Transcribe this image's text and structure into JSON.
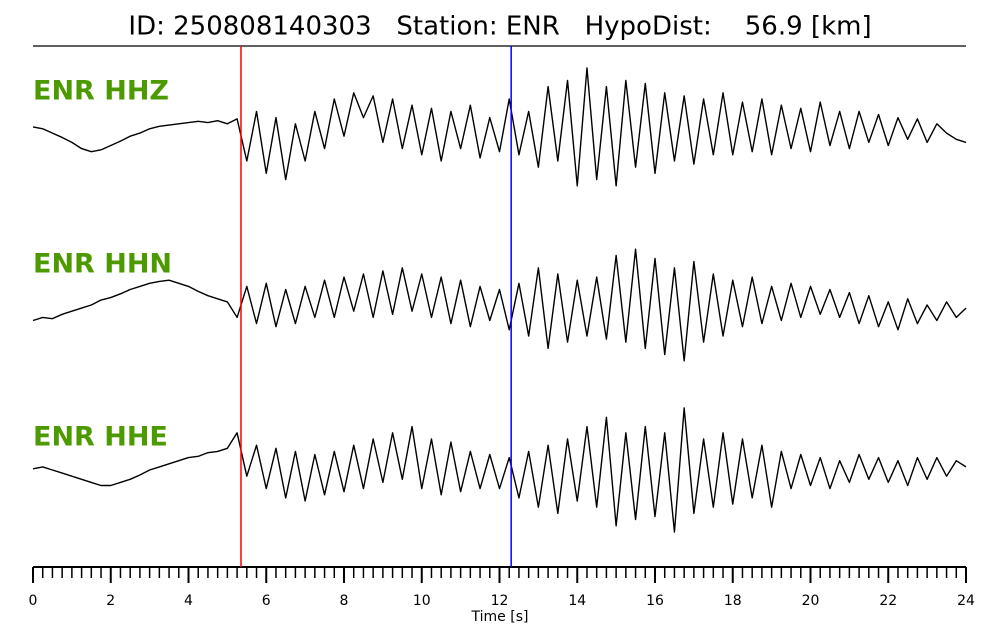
{
  "chart_data": {
    "type": "line",
    "title": "ID: 250808140303   Station: ENR   HypoDist:    56.9 [km]",
    "xlabel": "Time [s]",
    "xlim": [
      0,
      24
    ],
    "xticks": [
      0,
      2,
      4,
      6,
      8,
      10,
      12,
      14,
      16,
      18,
      20,
      22,
      24
    ],
    "xminorticks": [
      0,
      0.25,
      0.5,
      0.75,
      1,
      1.25,
      1.5,
      1.75,
      2,
      2.25,
      2.5,
      2.75,
      3,
      3.25,
      3.5,
      3.75,
      4,
      4.25,
      4.5,
      4.75,
      5,
      5.25,
      5.5,
      5.75,
      6,
      6.25,
      6.5,
      6.75,
      7,
      7.25,
      7.5,
      7.75,
      8,
      8.25,
      8.5,
      8.75,
      9,
      9.25,
      9.5,
      9.75,
      10,
      10.25,
      10.5,
      10.75,
      11,
      11.25,
      11.5,
      11.75,
      12,
      12.25,
      12.5,
      12.75,
      13,
      13.25,
      13.5,
      13.75,
      14,
      14.25,
      14.5,
      14.75,
      15,
      15.25,
      15.5,
      15.75,
      16,
      16.25,
      16.5,
      16.75,
      17,
      17.25,
      17.5,
      17.75,
      18,
      18.25,
      18.5,
      18.75,
      19,
      19.25,
      19.5,
      19.75,
      20,
      20.25,
      20.5,
      20.75,
      21,
      21.25,
      21.5,
      21.75,
      22,
      22.25,
      22.5,
      22.75,
      23,
      23.25,
      23.5,
      23.75,
      24
    ],
    "ylim": [
      -1,
      1
    ],
    "x": [
      0,
      0.25,
      0.5,
      0.75,
      1,
      1.25,
      1.5,
      1.75,
      2,
      2.25,
      2.5,
      2.75,
      3,
      3.25,
      3.5,
      3.75,
      4,
      4.25,
      4.5,
      4.75,
      5,
      5.25,
      5.5,
      5.75,
      6,
      6.25,
      6.5,
      6.75,
      7,
      7.25,
      7.5,
      7.75,
      8,
      8.25,
      8.5,
      8.75,
      9,
      9.25,
      9.5,
      9.75,
      10,
      10.25,
      10.5,
      10.75,
      11,
      11.25,
      11.5,
      11.75,
      12,
      12.25,
      12.5,
      12.75,
      13,
      13.25,
      13.5,
      13.75,
      14,
      14.25,
      14.5,
      14.75,
      15,
      15.25,
      15.5,
      15.75,
      16,
      16.25,
      16.5,
      16.75,
      17,
      17.25,
      17.5,
      17.75,
      18,
      18.25,
      18.5,
      18.75,
      19,
      19.25,
      19.5,
      19.75,
      20,
      20.25,
      20.5,
      20.75,
      21,
      21.25,
      21.5,
      21.75,
      22,
      22.25,
      22.5,
      22.75,
      23,
      23.25,
      23.5,
      23.75,
      24
    ],
    "label_color": "#4c9a00",
    "markers": [
      {
        "x": 5.35,
        "color": "#ff0000"
      },
      {
        "x": 12.3,
        "color": "#0000ff"
      }
    ],
    "series": [
      {
        "name": "ENR HHZ",
        "color": "#000000",
        "values": [
          0.05,
          0.02,
          -0.05,
          -0.12,
          -0.2,
          -0.3,
          -0.35,
          -0.32,
          -0.25,
          -0.18,
          -0.1,
          -0.05,
          0.02,
          0.06,
          0.08,
          0.1,
          0.12,
          0.14,
          0.12,
          0.15,
          0.1,
          0.18,
          -0.5,
          0.3,
          -0.7,
          0.2,
          -0.8,
          0.1,
          -0.5,
          0.3,
          -0.3,
          0.5,
          -0.1,
          0.6,
          0.2,
          0.55,
          -0.2,
          0.5,
          -0.3,
          0.4,
          -0.4,
          0.35,
          -0.5,
          0.3,
          -0.3,
          0.4,
          -0.45,
          0.2,
          -0.35,
          0.5,
          -0.4,
          0.3,
          -0.6,
          0.7,
          -0.5,
          0.8,
          -0.9,
          1.0,
          -0.8,
          0.7,
          -0.9,
          0.8,
          -0.6,
          0.75,
          -0.7,
          0.6,
          -0.5,
          0.55,
          -0.55,
          0.5,
          -0.4,
          0.6,
          -0.4,
          0.45,
          -0.35,
          0.5,
          -0.4,
          0.4,
          -0.3,
          0.35,
          -0.35,
          0.45,
          -0.25,
          0.3,
          -0.3,
          0.3,
          -0.2,
          0.25,
          -0.25,
          0.2,
          -0.15,
          0.18,
          -0.2,
          0.1,
          -0.05,
          -0.15,
          -0.2
        ]
      },
      {
        "name": "ENR HHN",
        "color": "#000000",
        "values": [
          -0.25,
          -0.2,
          -0.22,
          -0.15,
          -0.1,
          -0.05,
          0.0,
          0.08,
          0.12,
          0.18,
          0.25,
          0.3,
          0.35,
          0.38,
          0.4,
          0.35,
          0.3,
          0.22,
          0.15,
          0.1,
          0.05,
          -0.2,
          0.3,
          -0.3,
          0.35,
          -0.35,
          0.25,
          -0.3,
          0.3,
          -0.2,
          0.4,
          -0.2,
          0.45,
          -0.1,
          0.5,
          -0.2,
          0.55,
          -0.15,
          0.6,
          -0.1,
          0.5,
          -0.2,
          0.45,
          -0.3,
          0.4,
          -0.35,
          0.3,
          -0.25,
          0.25,
          -0.4,
          0.35,
          -0.5,
          0.6,
          -0.7,
          0.5,
          -0.6,
          0.4,
          -0.5,
          0.45,
          -0.55,
          0.8,
          -0.6,
          0.9,
          -0.7,
          0.75,
          -0.8,
          0.6,
          -0.9,
          0.7,
          -0.6,
          0.5,
          -0.5,
          0.4,
          -0.35,
          0.45,
          -0.3,
          0.3,
          -0.25,
          0.35,
          -0.2,
          0.3,
          -0.15,
          0.25,
          -0.2,
          0.2,
          -0.3,
          0.15,
          -0.35,
          0.05,
          -0.4,
          0.1,
          -0.3,
          0.0,
          -0.25,
          0.05,
          -0.2,
          -0.05
        ]
      },
      {
        "name": "ENR HHE",
        "color": "#000000",
        "values": [
          0.02,
          0.05,
          0.0,
          -0.05,
          -0.1,
          -0.15,
          -0.2,
          -0.25,
          -0.25,
          -0.2,
          -0.15,
          -0.08,
          0.0,
          0.05,
          0.1,
          0.15,
          0.2,
          0.22,
          0.28,
          0.3,
          0.35,
          0.6,
          -0.1,
          0.4,
          -0.3,
          0.35,
          -0.45,
          0.3,
          -0.5,
          0.25,
          -0.4,
          0.3,
          -0.35,
          0.4,
          -0.3,
          0.5,
          -0.2,
          0.6,
          -0.15,
          0.7,
          -0.3,
          0.5,
          -0.4,
          0.45,
          -0.35,
          0.3,
          -0.3,
          0.25,
          -0.3,
          0.2,
          -0.45,
          0.3,
          -0.6,
          0.4,
          -0.7,
          0.5,
          -0.5,
          0.7,
          -0.6,
          0.85,
          -0.9,
          0.6,
          -0.8,
          0.7,
          -0.75,
          0.6,
          -1.0,
          1.0,
          -0.7,
          0.5,
          -0.6,
          0.6,
          -0.55,
          0.5,
          -0.45,
          0.4,
          -0.6,
          0.3,
          -0.3,
          0.25,
          -0.25,
          0.2,
          -0.3,
          0.15,
          -0.2,
          0.25,
          -0.15,
          0.2,
          -0.2,
          0.15,
          -0.25,
          0.2,
          -0.15,
          0.2,
          -0.1,
          0.15,
          0.05
        ]
      }
    ]
  }
}
